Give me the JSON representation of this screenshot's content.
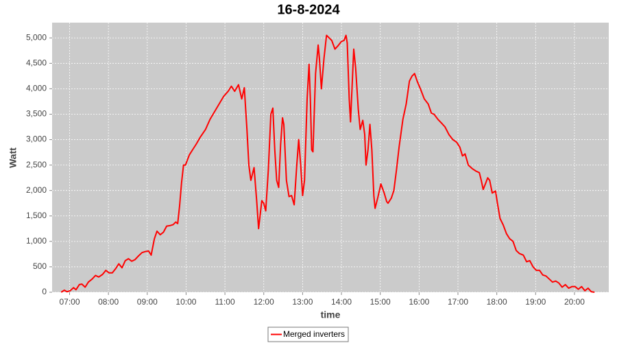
{
  "chart_data": {
    "type": "line",
    "title": "16-8-2024",
    "x_label": "time",
    "y_label": "Watt",
    "x": [
      "06:47",
      "06:52",
      "06:56",
      "07:01",
      "07:06",
      "07:10",
      "07:15",
      "07:19",
      "07:24",
      "07:29",
      "07:35",
      "07:40",
      "07:45",
      "07:51",
      "07:56",
      "08:01",
      "08:06",
      "08:11",
      "08:16",
      "08:21",
      "08:26",
      "08:31",
      "08:36",
      "08:41",
      "08:47",
      "08:52",
      "08:57",
      "09:02",
      "09:06",
      "09:11",
      "09:15",
      "09:20",
      "09:25",
      "09:30",
      "09:35",
      "09:40",
      "09:44",
      "09:47",
      "09:50",
      "09:53",
      "09:56",
      "09:59",
      "10:05",
      "10:10",
      "10:16",
      "10:22",
      "10:30",
      "10:37",
      "10:44",
      "10:51",
      "10:58",
      "11:05",
      "11:10",
      "11:15",
      "11:21",
      "11:26",
      "11:30",
      "11:34",
      "11:37",
      "11:40",
      "11:45",
      "11:49",
      "11:52",
      "11:57",
      "12:00",
      "12:03",
      "12:07",
      "12:11",
      "12:14",
      "12:17",
      "12:20",
      "12:23",
      "12:26",
      "12:29",
      "12:31",
      "12:35",
      "12:39",
      "12:43",
      "12:47",
      "12:51",
      "12:54",
      "12:57",
      "13:00",
      "13:03",
      "13:07",
      "13:10",
      "13:12",
      "13:14",
      "13:16",
      "13:20",
      "13:24",
      "13:26",
      "13:29",
      "13:33",
      "13:37",
      "13:41",
      "13:45",
      "13:50",
      "13:55",
      "14:00",
      "14:04",
      "14:07",
      "14:09",
      "14:12",
      "14:14",
      "14:17",
      "14:19",
      "14:22",
      "14:26",
      "14:29",
      "14:33",
      "14:36",
      "14:38",
      "14:41",
      "14:44",
      "14:47",
      "14:50",
      "14:52",
      "14:56",
      "15:01",
      "15:06",
      "15:10",
      "15:12",
      "15:17",
      "15:21",
      "15:25",
      "15:29",
      "15:35",
      "15:40",
      "15:45",
      "15:49",
      "15:53",
      "15:57",
      "16:02",
      "16:08",
      "16:14",
      "16:19",
      "16:23",
      "16:29",
      "16:35",
      "16:40",
      "16:46",
      "16:52",
      "16:58",
      "17:03",
      "17:07",
      "17:11",
      "17:16",
      "17:22",
      "17:28",
      "17:33",
      "17:36",
      "17:39",
      "17:43",
      "17:46",
      "17:49",
      "17:53",
      "17:58",
      "18:01",
      "18:05",
      "18:10",
      "18:15",
      "18:20",
      "18:25",
      "18:30",
      "18:35",
      "18:41",
      "18:46",
      "18:51",
      "18:56",
      "19:01",
      "19:06",
      "19:11",
      "19:16",
      "19:21",
      "19:26",
      "19:31",
      "19:36",
      "19:41",
      "19:46",
      "19:51",
      "19:56",
      "20:01",
      "20:06",
      "20:11",
      "20:16",
      "20:21",
      "20:26",
      "20:31"
    ],
    "series": [
      {
        "name": "Merged inverters",
        "color": "#ff0000",
        "values": [
          0,
          40,
          10,
          30,
          90,
          50,
          150,
          160,
          100,
          200,
          260,
          330,
          300,
          350,
          430,
          380,
          380,
          460,
          560,
          480,
          620,
          660,
          610,
          640,
          720,
          780,
          800,
          810,
          730,
          1050,
          1200,
          1130,
          1180,
          1300,
          1310,
          1330,
          1380,
          1350,
          1700,
          2150,
          2500,
          2500,
          2700,
          2800,
          2920,
          3050,
          3200,
          3400,
          3550,
          3700,
          3850,
          3950,
          4050,
          3950,
          4080,
          3800,
          4020,
          3200,
          2500,
          2200,
          2450,
          1800,
          1250,
          1800,
          1750,
          1600,
          2400,
          3500,
          3620,
          2800,
          2200,
          2060,
          2900,
          3430,
          3300,
          2200,
          1880,
          1900,
          1720,
          2500,
          3000,
          2500,
          1900,
          2200,
          3800,
          4480,
          3800,
          2800,
          2760,
          4300,
          4860,
          4600,
          4000,
          4600,
          5050,
          5000,
          4950,
          4780,
          4850,
          4930,
          4950,
          5050,
          4900,
          3800,
          3350,
          4200,
          4780,
          4400,
          3600,
          3200,
          3380,
          3100,
          2500,
          2800,
          3300,
          2800,
          1900,
          1650,
          1850,
          2130,
          1950,
          1780,
          1750,
          1850,
          2000,
          2400,
          2850,
          3400,
          3700,
          4150,
          4250,
          4300,
          4150,
          4000,
          3800,
          3700,
          3520,
          3500,
          3400,
          3320,
          3250,
          3100,
          3000,
          2950,
          2850,
          2680,
          2720,
          2500,
          2430,
          2380,
          2350,
          2200,
          2020,
          2150,
          2250,
          2200,
          1950,
          1990,
          1750,
          1450,
          1320,
          1150,
          1050,
          1000,
          820,
          760,
          730,
          600,
          620,
          500,
          430,
          430,
          340,
          320,
          260,
          200,
          220,
          180,
          100,
          150,
          80,
          110,
          110,
          60,
          110,
          30,
          80,
          10,
          0
        ]
      }
    ],
    "xlim": [
      "06:33",
      "20:53"
    ],
    "xticks": [
      "07:00",
      "08:00",
      "09:00",
      "10:00",
      "11:00",
      "12:00",
      "13:00",
      "14:00",
      "15:00",
      "16:00",
      "17:00",
      "18:00",
      "19:00",
      "20:00"
    ],
    "ylim": [
      0,
      5300
    ],
    "yticks": [
      0,
      500,
      {
        "value": 1000,
        "label": "1,000"
      },
      {
        "value": 1500,
        "label": "1,500"
      },
      {
        "value": 2000,
        "label": "2,000"
      },
      {
        "value": 2500,
        "label": "2,500"
      },
      {
        "value": 3000,
        "label": "3,000"
      },
      {
        "value": 3500,
        "label": "3,500"
      },
      {
        "value": 4000,
        "label": "4,000"
      },
      {
        "value": 4500,
        "label": "4,500"
      },
      {
        "value": 5000,
        "label": "5,000"
      }
    ],
    "grid": true,
    "legend": "bottom"
  }
}
